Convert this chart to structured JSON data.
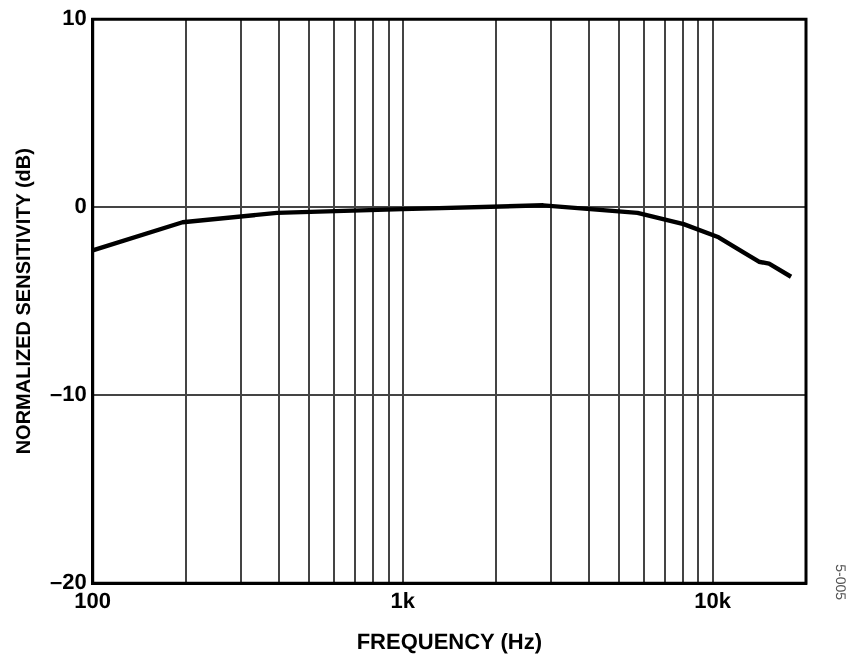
{
  "chart_data": {
    "type": "line",
    "xlabel": "FREQUENCY (Hz)",
    "ylabel": "NORMALIZED SENSITIVITY (dB)",
    "log": "x",
    "grid": true,
    "legend": false,
    "marker": "none",
    "line_style": "solid",
    "x": [
      100,
      195,
      393,
      1000,
      2840,
      5720,
      8060,
      10450,
      14100,
      15200,
      17900
    ],
    "series": [
      {
        "color": "#000000",
        "values": [
          -2.3,
          -0.8,
          -0.3,
          -0.1,
          0.1,
          -0.3,
          -0.9,
          -1.6,
          -2.9,
          -3.0,
          -3.7
        ]
      }
    ],
    "xlim": [
      100,
      20000
    ],
    "xticks": [
      100,
      {
        "value": 200,
        "label": null
      },
      {
        "value": 300,
        "label": null
      },
      {
        "value": 400,
        "label": null
      },
      {
        "value": 500,
        "label": null
      },
      {
        "value": 600,
        "label": null
      },
      {
        "value": 700,
        "label": null
      },
      {
        "value": 800,
        "label": null
      },
      {
        "value": 900,
        "label": null
      },
      {
        "value": 1000,
        "label": "1k"
      },
      {
        "value": 2000,
        "label": null
      },
      {
        "value": 3000,
        "label": null
      },
      {
        "value": 4000,
        "label": null
      },
      {
        "value": 5000,
        "label": null
      },
      {
        "value": 6000,
        "label": null
      },
      {
        "value": 7000,
        "label": null
      },
      {
        "value": 8000,
        "label": null
      },
      {
        "value": 9000,
        "label": null
      },
      {
        "value": 10000,
        "label": "10k"
      }
    ],
    "ylim": [
      -20,
      10
    ],
    "yticks": [
      {
        "value": -20,
        "label": "–20"
      },
      {
        "value": -10,
        "label": "–10"
      },
      0,
      10
    ],
    "annotations": [
      "5-005"
    ]
  }
}
